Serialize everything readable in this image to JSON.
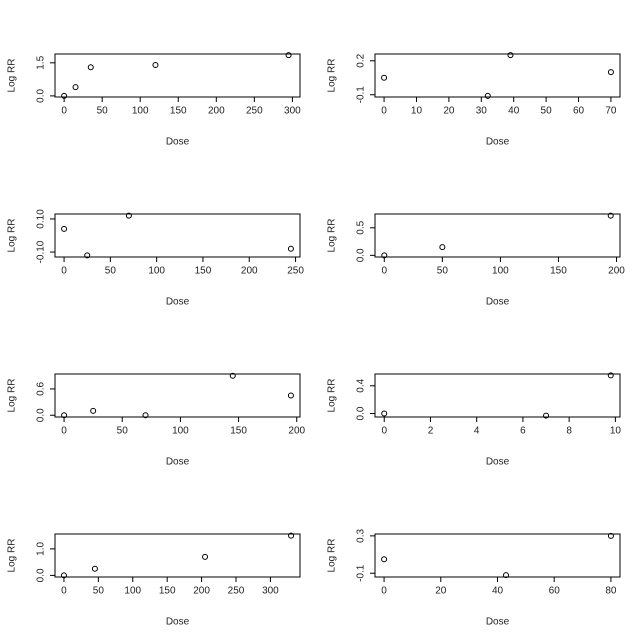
{
  "chart_data": [
    {
      "type": "scatter",
      "x_label": "Dose",
      "y_label": "Log RR",
      "x": [
        0,
        15,
        35,
        120,
        295
      ],
      "values": [
        0,
        0.4,
        1.3,
        1.4,
        1.85
      ],
      "xlim": [
        -12,
        310
      ],
      "ylim": [
        -0.05,
        1.9
      ],
      "xticks": [
        0,
        50,
        100,
        150,
        200,
        250,
        300
      ],
      "yticks": [
        {
          "value": 0,
          "label": "0.0"
        },
        1.5
      ]
    },
    {
      "type": "scatter",
      "x_label": "Dose",
      "y_label": "Log RR",
      "x": [
        0,
        32,
        39,
        70
      ],
      "values": [
        0.05,
        -0.11,
        0.25,
        0.1
      ],
      "xlim": [
        -2.8,
        72.8
      ],
      "ylim": [
        -0.12,
        0.26
      ],
      "xticks": [
        0,
        10,
        20,
        30,
        40,
        50,
        60,
        70
      ],
      "yticks": [
        -0.1,
        0.2
      ]
    },
    {
      "type": "scatter",
      "x_label": "Dose",
      "y_label": "Log RR",
      "x": [
        0,
        25,
        70,
        245
      ],
      "values": [
        0.04,
        -0.12,
        0.12,
        -0.08
      ],
      "xlim": [
        -9.8,
        254.8
      ],
      "ylim": [
        -0.13,
        0.13
      ],
      "xticks": [
        0,
        50,
        100,
        150,
        200,
        250
      ],
      "yticks": [
        {
          "value": -0.1,
          "label": "-0.10"
        },
        {
          "value": 0.1,
          "label": "0.10"
        }
      ]
    },
    {
      "type": "scatter",
      "x_label": "Dose",
      "y_label": "Log RR",
      "x": [
        0,
        50,
        195
      ],
      "values": [
        0,
        0.15,
        0.72
      ],
      "xlim": [
        -8,
        203
      ],
      "ylim": [
        -0.03,
        0.75
      ],
      "xticks": [
        0,
        50,
        100,
        150,
        200
      ],
      "yticks": [
        {
          "value": 0,
          "label": "0.0"
        },
        0.5
      ]
    },
    {
      "type": "scatter",
      "x_label": "Dose",
      "y_label": "Log RR",
      "x": [
        0,
        25,
        70,
        145,
        195
      ],
      "values": [
        0,
        0.1,
        0,
        0.9,
        0.45
      ],
      "xlim": [
        -7.8,
        202.8
      ],
      "ylim": [
        -0.04,
        0.94
      ],
      "xticks": [
        0,
        50,
        100,
        150,
        200
      ],
      "yticks": [
        {
          "value": 0,
          "label": "0.0"
        },
        0.6
      ]
    },
    {
      "type": "scatter",
      "x_label": "Dose",
      "y_label": "Log RR",
      "x": [
        0,
        7,
        9.8
      ],
      "values": [
        0,
        -0.03,
        0.55
      ],
      "xlim": [
        -0.4,
        10.2
      ],
      "ylim": [
        -0.05,
        0.57
      ],
      "xticks": [
        0,
        2,
        4,
        6,
        8,
        10
      ],
      "yticks": [
        {
          "value": 0,
          "label": "0.0"
        },
        0.4
      ]
    },
    {
      "type": "scatter",
      "x_label": "Dose",
      "y_label": "Log RR",
      "x": [
        0,
        45,
        205,
        330
      ],
      "values": [
        0,
        0.25,
        0.7,
        1.5
      ],
      "xlim": [
        -13,
        343
      ],
      "ylim": [
        -0.06,
        1.56
      ],
      "xticks": [
        0,
        50,
        100,
        150,
        200,
        250,
        300
      ],
      "yticks": [
        {
          "value": 0,
          "label": "0.0"
        },
        {
          "value": 1,
          "label": "1.0"
        }
      ]
    },
    {
      "type": "scatter",
      "x_label": "Dose",
      "y_label": "Log RR",
      "x": [
        0,
        43,
        80
      ],
      "values": [
        0.05,
        -0.12,
        0.3
      ],
      "xlim": [
        -3.2,
        83.2
      ],
      "ylim": [
        -0.14,
        0.32
      ],
      "xticks": [
        0,
        20,
        40,
        60,
        80
      ],
      "yticks": [
        -0.1,
        0.3
      ]
    }
  ]
}
